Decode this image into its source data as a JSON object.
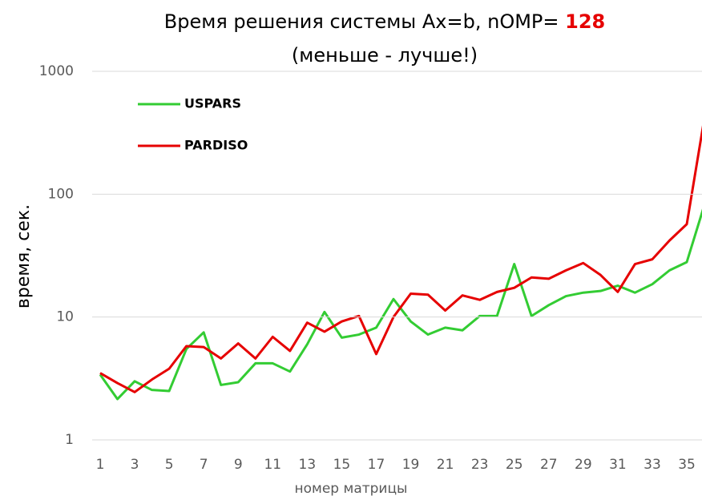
{
  "chart_data": {
    "type": "line",
    "title": "Время решения системы Ax=b, nOMP=",
    "title_highlight": "128",
    "subtitle": "(меньше - лучше!)",
    "x_label": "номер матрицы",
    "y_label": "время, сек.",
    "categories": [
      "1",
      null,
      "3",
      null,
      "5",
      null,
      "7",
      null,
      "9",
      null,
      "11",
      null,
      "13",
      null,
      "15",
      null,
      "17",
      null,
      "19",
      null,
      "21",
      null,
      "23",
      null,
      "25",
      null,
      "27",
      null,
      "29",
      null,
      "31",
      null,
      "33",
      null,
      "35",
      null
    ],
    "series": [
      {
        "name": "USPARS",
        "color": "#33cc33",
        "values": [
          3.4,
          2.15,
          3.0,
          2.55,
          2.5,
          5.5,
          7.5,
          2.8,
          2.95,
          4.2,
          4.2,
          3.6,
          6,
          11,
          6.8,
          7.2,
          8.2,
          14,
          9.2,
          7.2,
          8.2,
          7.8,
          10.2,
          10.2,
          27,
          10.2,
          12.5,
          14.8,
          15.8,
          16.3,
          18,
          15.8,
          18.5,
          24,
          28,
          80
        ]
      },
      {
        "name": "PARDISO",
        "color": "#e60000",
        "values": [
          3.5,
          2.9,
          2.45,
          3.1,
          3.8,
          5.8,
          5.7,
          4.6,
          6.1,
          4.6,
          6.9,
          5.3,
          9,
          7.6,
          9.2,
          10.2,
          5,
          10,
          15.5,
          15.2,
          11.3,
          15,
          13.8,
          16,
          17.3,
          21,
          20.5,
          24,
          27.5,
          22,
          16,
          27,
          29.5,
          42,
          57,
          400
        ]
      }
    ],
    "ylim": [
      1,
      1000
    ],
    "yticks": [
      1,
      10,
      100,
      1000
    ],
    "log_y": true,
    "grid": true,
    "legend": "upper left"
  }
}
